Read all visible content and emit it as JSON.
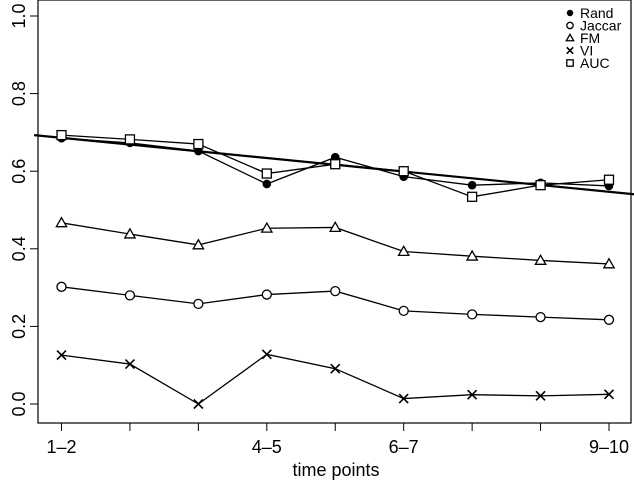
{
  "chart_data": {
    "type": "line",
    "title": "",
    "xlabel": "time points",
    "ylabel": "",
    "ylim": [
      0.0,
      1.0
    ],
    "yticks": [
      "0.0",
      "0.2",
      "0.4",
      "0.6",
      "0.8",
      "1.0"
    ],
    "x": [
      1,
      2,
      3,
      4,
      5,
      6,
      7,
      8,
      9
    ],
    "xtick_labels": [
      {
        "x": 1,
        "label": "1–2"
      },
      {
        "x": 4,
        "label": "4–5"
      },
      {
        "x": 6,
        "label": "6–7"
      },
      {
        "x": 9,
        "label": "9–10"
      }
    ],
    "grid": false,
    "legend_position": "top-right",
    "series": [
      {
        "name": "Rand",
        "marker": "filled-circle",
        "values": [
          0.685,
          0.673,
          0.652,
          0.567,
          0.636,
          0.586,
          0.564,
          0.57,
          0.562
        ]
      },
      {
        "name": "Jaccar",
        "marker": "open-circle",
        "values": [
          0.302,
          0.28,
          0.258,
          0.282,
          0.291,
          0.24,
          0.231,
          0.224,
          0.217
        ]
      },
      {
        "name": "FM",
        "marker": "triangle",
        "values": [
          0.467,
          0.438,
          0.41,
          0.453,
          0.455,
          0.393,
          0.381,
          0.37,
          0.361
        ]
      },
      {
        "name": "VI",
        "marker": "cross",
        "values": [
          0.126,
          0.103,
          0.0,
          0.128,
          0.091,
          0.014,
          0.024,
          0.021,
          0.025
        ]
      },
      {
        "name": "AUC",
        "marker": "open-square",
        "values": [
          0.693,
          0.682,
          0.67,
          0.594,
          0.618,
          0.6,
          0.534,
          0.564,
          0.578
        ]
      }
    ],
    "trend_line": {
      "x": [
        0.6,
        9.4
      ],
      "y": [
        0.693,
        0.54
      ]
    }
  }
}
